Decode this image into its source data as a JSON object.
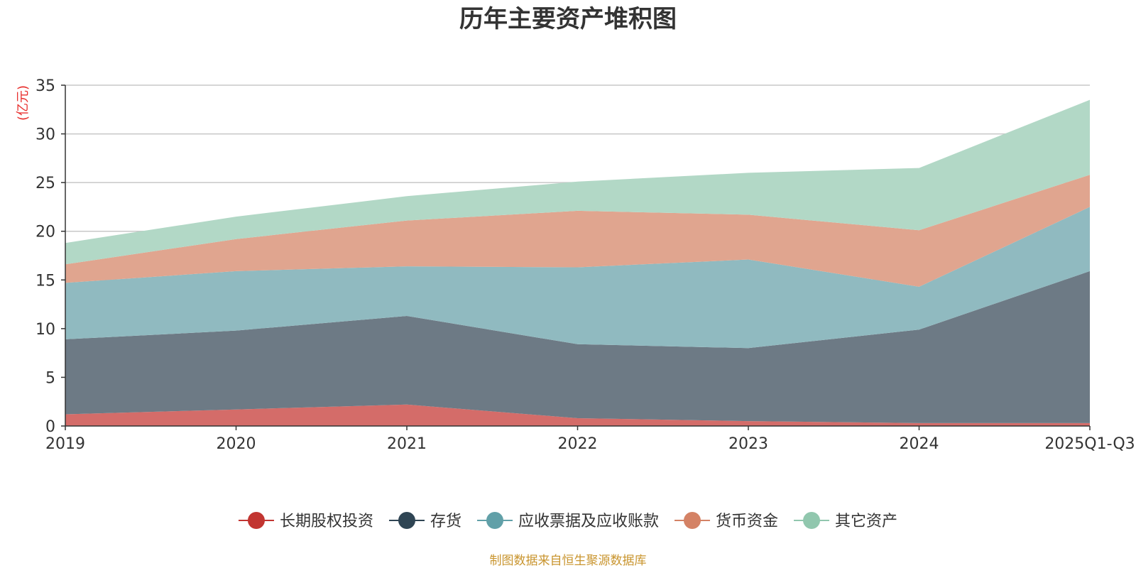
{
  "chart_data": {
    "type": "area",
    "stacked": true,
    "title": "历年主要资产堆积图",
    "ylabel": "(亿元)",
    "xlabel": "",
    "categories": [
      "2019",
      "2020",
      "2021",
      "2022",
      "2023",
      "2024",
      "2025Q1-Q3"
    ],
    "ylim": [
      0,
      35
    ],
    "yticks": [
      0,
      5,
      10,
      15,
      20,
      25,
      30,
      35
    ],
    "grid": true,
    "legend_position": "bottom-center",
    "series": [
      {
        "name": "长期股权投资",
        "values": [
          1.2,
          1.7,
          2.2,
          0.8,
          0.5,
          0.3,
          0.3
        ],
        "color": "#c23531",
        "fill": "#d46c69"
      },
      {
        "name": "存货",
        "values": [
          7.7,
          8.1,
          9.1,
          7.6,
          7.5,
          9.6,
          15.6
        ],
        "color": "#2f4554",
        "fill": "#6d7a85"
      },
      {
        "name": "应收票据及应收账款",
        "values": [
          5.8,
          6.1,
          5.1,
          7.9,
          9.1,
          4.4,
          6.6
        ],
        "color": "#61a0a8",
        "fill": "#90bac0"
      },
      {
        "name": "货币资金",
        "values": [
          1.9,
          3.3,
          4.7,
          5.8,
          4.6,
          5.8,
          3.3
        ],
        "color": "#d48265",
        "fill": "#e0a58f"
      },
      {
        "name": "其它资产",
        "values": [
          2.2,
          2.3,
          2.5,
          3.0,
          4.3,
          6.4,
          7.7
        ],
        "color": "#91c7ae",
        "fill": "#b2d8c6"
      }
    ],
    "source": "制图数据来自恒生聚源数据库",
    "source_color": "#c9952f"
  }
}
